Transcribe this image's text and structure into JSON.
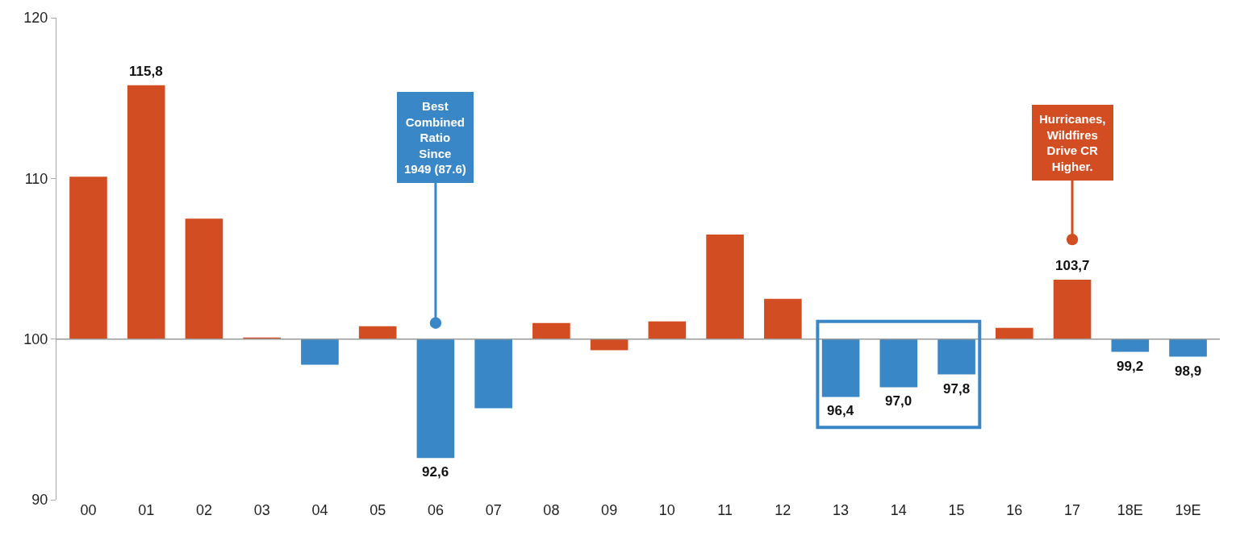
{
  "chart_data": {
    "type": "bar",
    "categories": [
      "00",
      "01",
      "02",
      "03",
      "04",
      "05",
      "06",
      "07",
      "08",
      "09",
      "10",
      "11",
      "12",
      "13",
      "14",
      "15",
      "16",
      "17",
      "18E",
      "19E"
    ],
    "base": [
      100,
      100,
      100,
      100,
      100,
      100,
      100,
      100,
      100,
      100,
      100,
      100,
      100,
      100,
      100,
      100,
      100,
      100,
      100,
      100
    ],
    "values": [
      10.1,
      15.8,
      7.5,
      0.1,
      -1.6,
      0.8,
      -7.4,
      -4.3,
      1.0,
      -0.7,
      1.1,
      6.5,
      2.5,
      -3.6,
      -3.0,
      -2.2,
      0.7,
      3.7,
      -0.8,
      -1.1
    ],
    "colors": [
      "#d24e22",
      "#d24e22",
      "#d24e22",
      "#d24e22",
      "#3a87c8",
      "#d24e22",
      "#3a87c8",
      "#3a87c8",
      "#d24e22",
      "#d24e22",
      "#d24e22",
      "#d24e22",
      "#d24e22",
      "#3a87c8",
      "#3a87c8",
      "#3a87c8",
      "#d24e22",
      "#d24e22",
      "#3a87c8",
      "#3a87c8"
    ],
    "value_labels": [
      null,
      "115,8",
      null,
      null,
      null,
      null,
      "92,6",
      null,
      null,
      null,
      null,
      null,
      null,
      "96,4",
      "97,0",
      "97,8",
      null,
      "103,7",
      "99,2",
      "98,9"
    ],
    "ylim": [
      90,
      120
    ],
    "yticks": [
      90,
      100,
      110,
      120
    ],
    "ref_lines": [
      {
        "axis": "y",
        "value": 100,
        "color": "#999999"
      }
    ],
    "annotations": [
      {
        "text": "Best\nCombined\nRatio\nSince\n1949 (87.6)",
        "x": "06",
        "y": 101
      },
      {
        "text": "Hurricanes,\nWildfires\nDrive CR\nHigher.",
        "x": "17",
        "y": 106.2
      }
    ]
  }
}
